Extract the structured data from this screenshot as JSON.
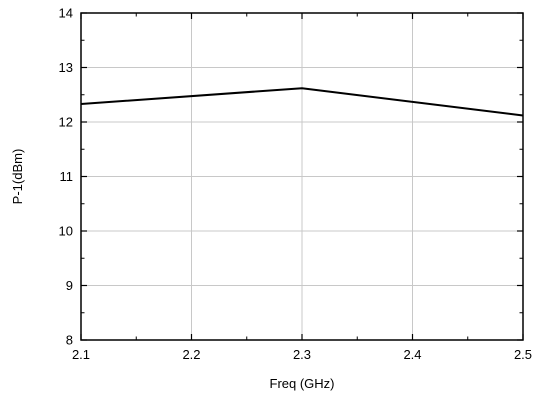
{
  "chart_data": {
    "type": "line",
    "xlabel": "Freq (GHz)",
    "ylabel": "P-1(dBm)",
    "xlim": [
      2.1,
      2.5
    ],
    "ylim": [
      8,
      14
    ],
    "xticks": [
      "2.1",
      "2.2",
      "2.3",
      "2.4",
      "2.5"
    ],
    "yticks": [
      "8",
      "9",
      "10",
      "11",
      "12",
      "13",
      "14"
    ],
    "grid": true,
    "series": [
      {
        "x": [
          2.1,
          2.3,
          2.5
        ],
        "y": [
          12.33,
          12.62,
          12.12
        ],
        "color": "#000000"
      }
    ]
  }
}
